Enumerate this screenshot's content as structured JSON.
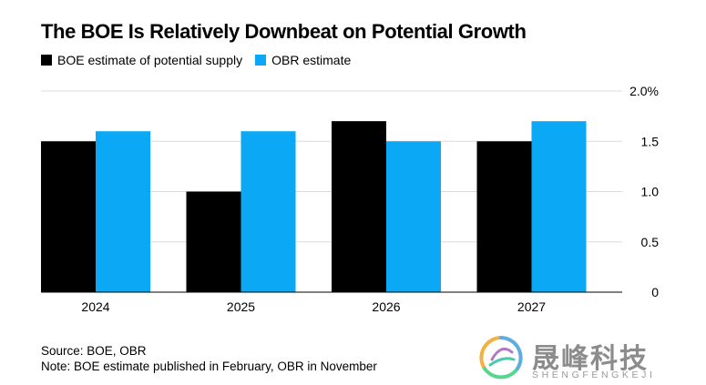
{
  "chart_data": {
    "type": "bar",
    "title": "The BOE Is Relatively Downbeat on Potential Growth",
    "categories": [
      "2024",
      "2025",
      "2026",
      "2027"
    ],
    "series": [
      {
        "name": "BOE estimate of potential supply",
        "color": "#000000",
        "values": [
          1.5,
          1.0,
          1.7,
          1.5
        ]
      },
      {
        "name": "OBR estimate",
        "color": "#0aa8f5",
        "values": [
          1.6,
          1.6,
          1.5,
          1.7
        ]
      }
    ],
    "y_ticks": [
      "0",
      "0.5",
      "1.0",
      "1.5",
      "2.0%"
    ],
    "y_tick_values": [
      0,
      0.5,
      1.0,
      1.5,
      2.0
    ],
    "ylim": [
      0,
      2.0
    ],
    "xlabel": "",
    "ylabel": "",
    "grid": true,
    "legend": "top-left",
    "y_axis_position": "right"
  },
  "footer": {
    "source": "Source: BOE, OBR",
    "note": "Note: BOE estimate published in February, OBR in November"
  },
  "watermark": {
    "text": "晟峰科技",
    "subtext": "SHENGFENGKEJI"
  }
}
